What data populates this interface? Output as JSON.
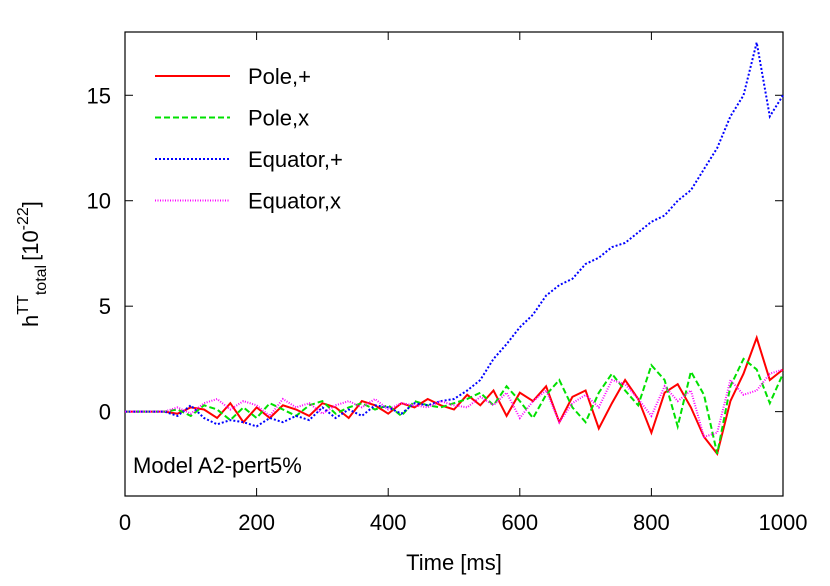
{
  "chart_data": {
    "type": "line",
    "xlabel": "Time [ms]",
    "ylabel": {
      "base": "h",
      "sup": "TT",
      "sub": "total",
      "unit": "[10",
      "unit_sup": "-22",
      "close": "]"
    },
    "annotation": "Model A2-pert5%",
    "x": [
      0,
      20,
      40,
      60,
      80,
      100,
      120,
      140,
      160,
      180,
      200,
      220,
      240,
      260,
      280,
      300,
      320,
      340,
      360,
      380,
      400,
      420,
      440,
      460,
      480,
      500,
      520,
      540,
      560,
      580,
      600,
      620,
      640,
      660,
      680,
      700,
      720,
      740,
      760,
      780,
      800,
      820,
      840,
      860,
      880,
      900,
      920,
      940,
      960,
      980,
      1000
    ],
    "series": [
      {
        "name": "Pole,+",
        "color": "#ff0000",
        "dash": "none",
        "values": [
          0,
          0,
          0,
          0,
          -0.1,
          0.2,
          0.1,
          -0.3,
          0.4,
          -0.5,
          0.2,
          -0.3,
          0.3,
          0.1,
          -0.2,
          0.4,
          0.2,
          -0.3,
          0.5,
          0.3,
          -0.1,
          0.4,
          0.2,
          0.6,
          0.3,
          0.1,
          0.8,
          0.3,
          1,
          -0.2,
          0.9,
          0.5,
          1.2,
          -0.5,
          0.7,
          1,
          -0.8,
          0.4,
          1.5,
          0.6,
          -1,
          0.9,
          1.3,
          0.2,
          -1.2,
          -2,
          0.5,
          1.8,
          3.5,
          1.5,
          2
        ]
      },
      {
        "name": "Pole,x",
        "color": "#00e000",
        "dash": "6,3",
        "values": [
          0,
          0,
          0,
          0,
          0.1,
          -0.2,
          0.3,
          0.1,
          -0.4,
          0.2,
          -0.3,
          0.4,
          0.1,
          -0.2,
          0.3,
          0.5,
          -0.1,
          0.2,
          0.4,
          0.1,
          0.3,
          -0.2,
          0.5,
          0.3,
          0.2,
          0.4,
          0.6,
          0.9,
          0.3,
          1.2,
          0.5,
          -0.3,
          0.8,
          1.5,
          0.2,
          -0.5,
          0.9,
          1.8,
          1,
          0.3,
          2.2,
          1.5,
          -0.7,
          1.9,
          0.8,
          -2,
          1.2,
          2.5,
          2,
          0.4,
          1.8
        ]
      },
      {
        "name": "Equator,+",
        "color": "#0000ff",
        "dash": "2,2",
        "values": [
          0,
          0,
          0,
          0,
          -0.2,
          0.3,
          -0.3,
          -0.6,
          -0.4,
          -0.5,
          -0.7,
          -0.3,
          -0.5,
          -0.2,
          -0.4,
          0.2,
          -0.3,
          0.1,
          -0.2,
          0.3,
          0.2,
          -0.1,
          0.4,
          0.3,
          0.5,
          0.6,
          1,
          1.5,
          2.5,
          3.2,
          4,
          4.6,
          5.5,
          6,
          6.3,
          7,
          7.3,
          7.8,
          8,
          8.5,
          9,
          9.3,
          10,
          10.5,
          11.5,
          12.5,
          14,
          15,
          17.5,
          14,
          15
        ]
      },
      {
        "name": "Equator,x",
        "color": "#ff00ff",
        "dash": "1,1.5",
        "values": [
          0,
          0,
          0,
          0,
          0.2,
          -0.1,
          0.4,
          0.6,
          0.1,
          0.5,
          0.3,
          -0.2,
          0.6,
          0.2,
          0.4,
          -0.1,
          0.3,
          0.5,
          0.2,
          0.6,
          0.1,
          0.4,
          0.3,
          0.2,
          0.5,
          0.3,
          0.2,
          0.7,
          0.3,
          0.9,
          -0.3,
          0.5,
          1,
          -0.5,
          0.4,
          0.8,
          0.2,
          1.5,
          1.3,
          0.6,
          -0.2,
          1.2,
          0.5,
          1,
          -1.2,
          -1,
          1.5,
          0.8,
          1,
          1.8,
          2
        ]
      }
    ],
    "xlim": [
      0,
      1000
    ],
    "xticks": [
      0,
      200,
      400,
      600,
      800,
      1000
    ],
    "ylim": [
      -4,
      18
    ],
    "yticks": [
      0,
      5,
      10,
      15
    ],
    "legend": "top-left",
    "grid": false
  }
}
